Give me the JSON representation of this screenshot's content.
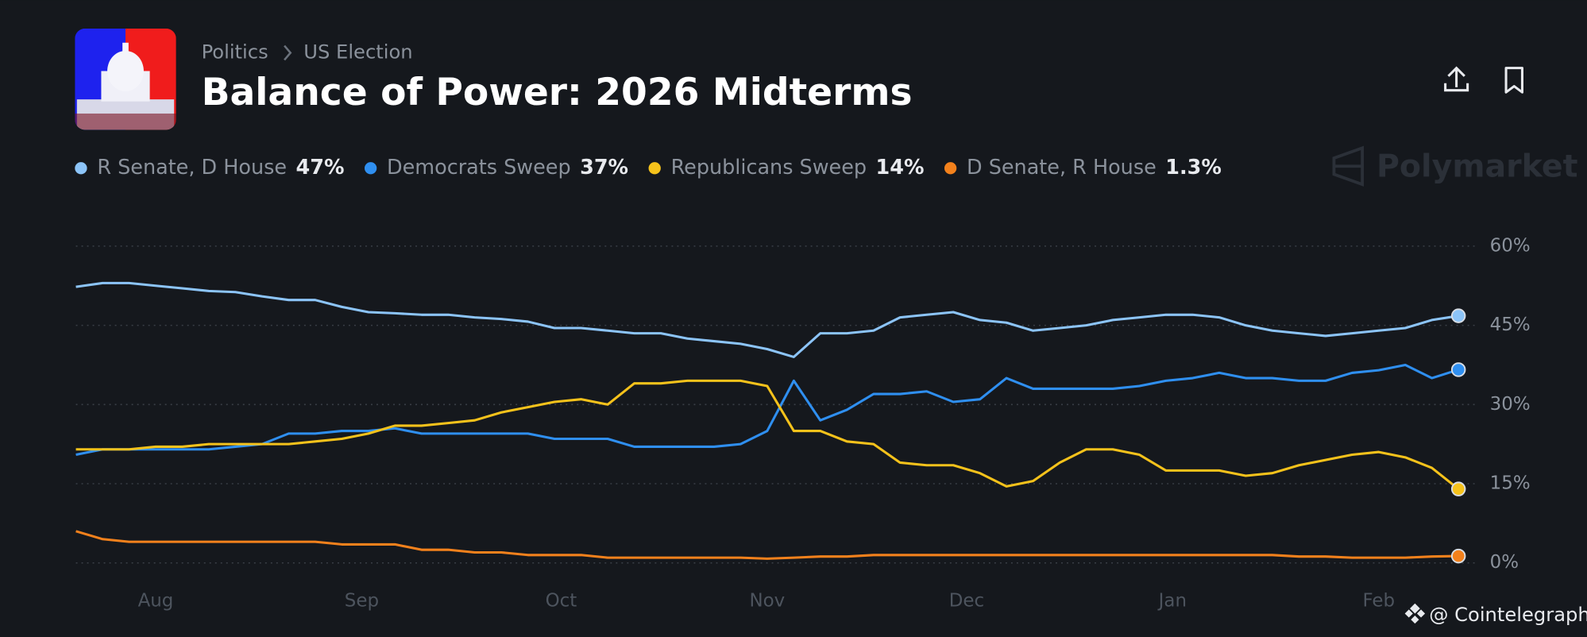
{
  "breadcrumb": [
    "Politics",
    "US Election"
  ],
  "watermark": "Polymarket",
  "credit": "@ Cointelegraph",
  "chart_data": {
    "type": "line",
    "title": "Balance of Power: 2026 Midterms",
    "x": [
      0,
      4,
      8,
      12,
      16,
      20,
      24,
      28,
      32,
      36,
      40,
      44,
      48,
      52,
      56,
      60,
      64,
      68,
      72,
      76,
      80,
      84,
      88,
      92,
      96,
      100,
      104,
      108,
      112,
      116,
      120,
      124,
      128,
      132,
      136,
      140,
      144,
      148,
      152,
      156,
      160,
      164,
      168,
      172,
      176,
      180,
      184,
      188,
      192,
      196,
      200,
      204,
      208
    ],
    "xlim": [
      0,
      208
    ],
    "xticks": [
      {
        "value": 12,
        "label": "Aug"
      },
      {
        "value": 43,
        "label": "Sep"
      },
      {
        "value": 73,
        "label": "Oct"
      },
      {
        "value": 104,
        "label": "Nov"
      },
      {
        "value": 134,
        "label": "Dec"
      },
      {
        "value": 165,
        "label": "Jan"
      },
      {
        "value": 196,
        "label": "Feb"
      }
    ],
    "ylim": [
      0,
      60
    ],
    "yticks": [
      {
        "value": 0,
        "label": "0%"
      },
      {
        "value": 15,
        "label": "15%"
      },
      {
        "value": 30,
        "label": "30%"
      },
      {
        "value": 45,
        "label": "45%"
      },
      {
        "value": 60,
        "label": "60%"
      }
    ],
    "grid": true,
    "series": [
      {
        "name": "R Senate, D House",
        "color": "#8cc4f8",
        "last_label": "47%",
        "values": [
          52.3,
          53,
          53,
          52.5,
          52,
          51.5,
          51.3,
          50.5,
          49.8,
          49.8,
          48.5,
          47.5,
          47.3,
          47,
          47,
          46.5,
          46.2,
          45.7,
          44.5,
          44.5,
          44,
          43.5,
          43.5,
          42.5,
          42,
          41.5,
          40.5,
          39,
          43.5,
          43.5,
          44,
          46.5,
          47,
          47.5,
          46,
          45.5,
          44,
          44.5,
          45,
          46,
          46.5,
          47,
          47,
          46.5,
          45,
          44,
          43.5,
          43,
          43.5,
          44,
          44.5,
          46,
          46.8
        ]
      },
      {
        "name": "Democrats Sweep",
        "color": "#2f8ff0",
        "last_label": "37%",
        "values": [
          20.5,
          21.5,
          21.5,
          21.5,
          21.5,
          21.5,
          22,
          22.5,
          24.5,
          24.5,
          25,
          25,
          25.5,
          24.5,
          24.5,
          24.5,
          24.5,
          24.5,
          23.5,
          23.5,
          23.5,
          22,
          22,
          22,
          22,
          22.5,
          25,
          34.5,
          27,
          29,
          32,
          32,
          32.5,
          30.5,
          31,
          35,
          33,
          33,
          33,
          33,
          33.5,
          34.5,
          35,
          36,
          35,
          35,
          34.5,
          34.5,
          36,
          36.5,
          37.5,
          35,
          36.6
        ]
      },
      {
        "name": "Republicans Sweep",
        "color": "#f5c21b",
        "last_label": "14%",
        "values": [
          21.5,
          21.5,
          21.5,
          22,
          22,
          22.5,
          22.5,
          22.5,
          22.5,
          23,
          23.5,
          24.5,
          26,
          26,
          26.5,
          27,
          28.5,
          29.5,
          30.5,
          31,
          30,
          34,
          34,
          34.5,
          34.5,
          34.5,
          33.5,
          25,
          25,
          23,
          22.5,
          19,
          18.5,
          18.5,
          17,
          14.5,
          15.5,
          19,
          21.5,
          21.5,
          20.5,
          17.5,
          17.5,
          17.5,
          16.5,
          17,
          18.5,
          19.5,
          20.5,
          21,
          20,
          18,
          14
        ]
      },
      {
        "name": "D Senate, R House",
        "color": "#f3811c",
        "last_label": "1.3%",
        "values": [
          6,
          4.5,
          4,
          4,
          4,
          4,
          4,
          4,
          4,
          4,
          3.5,
          3.5,
          3.5,
          2.5,
          2.5,
          2,
          2,
          1.5,
          1.5,
          1.5,
          1,
          1,
          1,
          1,
          1,
          1,
          0.8,
          1,
          1.2,
          1.2,
          1.5,
          1.5,
          1.5,
          1.5,
          1.5,
          1.5,
          1.5,
          1.5,
          1.5,
          1.5,
          1.5,
          1.5,
          1.5,
          1.5,
          1.5,
          1.5,
          1.2,
          1.2,
          1,
          1,
          1,
          1.2,
          1.3
        ]
      }
    ]
  }
}
